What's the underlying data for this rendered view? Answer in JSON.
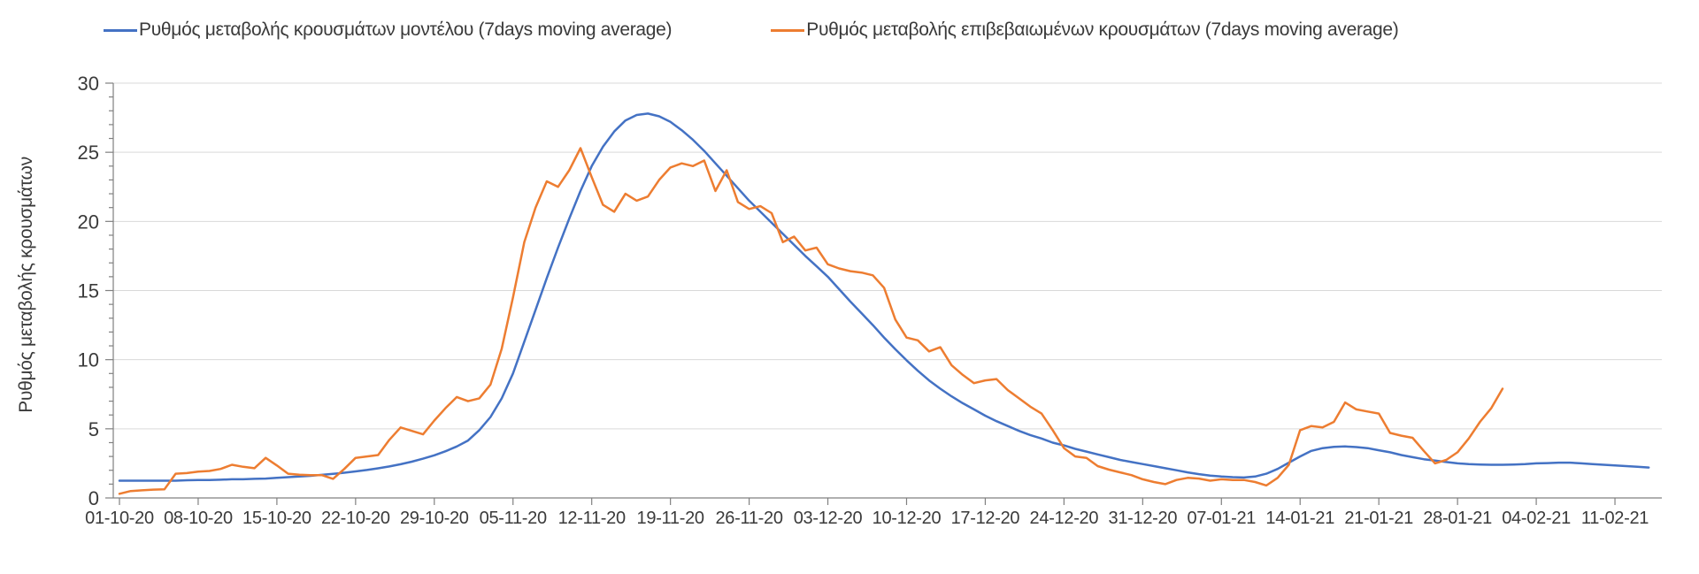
{
  "page": {
    "background": "#ffffff"
  },
  "legend": {
    "items": [
      {
        "label": "Ρυθμός μεταβολής κρουσμάτων μοντέλου (7days moving average)",
        "color": "#4472C4"
      },
      {
        "label": "Ρυθμός μεταβολής επιβεβαιωμένων κρουσμάτων (7days moving average)",
        "color": "#ED7D31"
      }
    ]
  },
  "chart_data": {
    "type": "line",
    "title": "",
    "xlabel": "",
    "ylabel": "Ρυθμός μεταβολής κρουσμάτων",
    "ylim": [
      0,
      30
    ],
    "y_ticks": [
      0,
      5,
      10,
      15,
      20,
      25,
      30
    ],
    "y_minor_tick_step": 1,
    "grid": "horizontal major gridlines only",
    "legend_position": "top",
    "axis_color": "#808080",
    "grid_color": "#d9d9d9",
    "text_color": "#3a3a3a",
    "x_start_date": "01-10-20",
    "x_tick_labels": [
      "01-10-20",
      "08-10-20",
      "15-10-20",
      "22-10-20",
      "29-10-20",
      "05-11-20",
      "12-11-20",
      "19-11-20",
      "26-11-20",
      "03-12-20",
      "10-12-20",
      "17-12-20",
      "24-12-20",
      "31-12-20",
      "07-01-21",
      "14-01-21",
      "21-01-21",
      "28-01-21",
      "04-02-21",
      "11-02-21"
    ],
    "x_tick_day_offsets": [
      0,
      7,
      14,
      21,
      28,
      35,
      42,
      49,
      56,
      63,
      70,
      77,
      84,
      91,
      98,
      105,
      112,
      119,
      126,
      133
    ],
    "series": [
      {
        "name": "Ρυθμός μεταβολής κρουσμάτων μοντέλου (7days moving average)",
        "color": "#4472C4",
        "start_day_offset": 0,
        "values": [
          1.25,
          1.25,
          1.25,
          1.25,
          1.25,
          1.25,
          1.28,
          1.3,
          1.3,
          1.32,
          1.35,
          1.35,
          1.38,
          1.4,
          1.45,
          1.5,
          1.55,
          1.6,
          1.67,
          1.74,
          1.82,
          1.92,
          2.02,
          2.14,
          2.28,
          2.44,
          2.62,
          2.84,
          3.08,
          3.38,
          3.72,
          4.15,
          4.9,
          5.85,
          7.2,
          9.0,
          11.3,
          13.6,
          15.9,
          18.1,
          20.2,
          22.2,
          24.0,
          25.4,
          26.5,
          27.3,
          27.7,
          27.8,
          27.6,
          27.2,
          26.6,
          25.9,
          25.1,
          24.2,
          23.3,
          22.4,
          21.5,
          20.7,
          19.9,
          19.1,
          18.3,
          17.5,
          16.75,
          16.0,
          15.1,
          14.2,
          13.35,
          12.5,
          11.6,
          10.75,
          9.95,
          9.2,
          8.5,
          7.9,
          7.35,
          6.85,
          6.4,
          5.95,
          5.55,
          5.2,
          4.85,
          4.55,
          4.3,
          4.0,
          3.8,
          3.55,
          3.35,
          3.15,
          2.95,
          2.75,
          2.6,
          2.45,
          2.3,
          2.15,
          2.0,
          1.85,
          1.72,
          1.62,
          1.55,
          1.5,
          1.48,
          1.55,
          1.75,
          2.1,
          2.55,
          3.0,
          3.4,
          3.6,
          3.7,
          3.72,
          3.68,
          3.6,
          3.45,
          3.3,
          3.1,
          2.95,
          2.8,
          2.7,
          2.6,
          2.5,
          2.45,
          2.42,
          2.4,
          2.4,
          2.42,
          2.45,
          2.5,
          2.52,
          2.55,
          2.55,
          2.5,
          2.45,
          2.4,
          2.35,
          2.3,
          2.25,
          2.2
        ]
      },
      {
        "name": "Ρυθμός μεταβολής επιβεβαιωμένων κρουσμάτων (7days moving average)",
        "color": "#ED7D31",
        "start_day_offset": 0,
        "values": [
          0.3,
          0.5,
          0.55,
          0.6,
          0.62,
          1.75,
          1.8,
          1.9,
          1.95,
          2.1,
          2.4,
          2.25,
          2.15,
          2.9,
          2.35,
          1.75,
          1.68,
          1.65,
          1.65,
          1.38,
          2.1,
          2.9,
          3.0,
          3.1,
          4.2,
          5.1,
          4.85,
          4.6,
          5.6,
          6.5,
          7.3,
          7.0,
          7.2,
          8.2,
          10.8,
          14.5,
          18.5,
          21.0,
          22.9,
          22.5,
          23.7,
          25.3,
          23.2,
          21.2,
          20.7,
          22.0,
          21.5,
          21.8,
          23.0,
          23.9,
          24.2,
          24.0,
          24.4,
          22.2,
          23.7,
          21.4,
          20.9,
          21.1,
          20.6,
          18.5,
          18.9,
          17.9,
          18.1,
          16.9,
          16.6,
          16.4,
          16.3,
          16.1,
          15.2,
          12.9,
          11.6,
          11.4,
          10.6,
          10.9,
          9.6,
          8.9,
          8.3,
          8.5,
          8.6,
          7.8,
          7.2,
          6.6,
          6.1,
          4.9,
          3.6,
          3.0,
          2.9,
          2.3,
          2.05,
          1.85,
          1.65,
          1.35,
          1.15,
          1.0,
          1.3,
          1.45,
          1.4,
          1.25,
          1.35,
          1.3,
          1.3,
          1.15,
          0.9,
          1.45,
          2.4,
          4.9,
          5.2,
          5.1,
          5.5,
          6.9,
          6.4,
          6.25,
          6.1,
          4.7,
          4.5,
          4.35,
          3.4,
          2.5,
          2.75,
          3.3,
          4.3,
          5.5,
          6.5,
          7.9
        ]
      }
    ]
  }
}
